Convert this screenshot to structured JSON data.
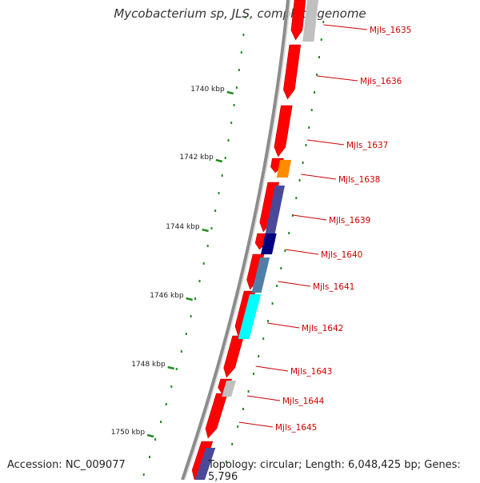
{
  "title": "Mycobacterium sp, JLS, complete genome",
  "footer": {
    "accession": "Accession: NC_009077",
    "stats": "Topology: circular; Length: 6,048,425 bp; Genes: 5,796"
  },
  "colors": {
    "backbone": "#8c8c8c",
    "tick": "#228b22",
    "gene_red": "#ff0000",
    "label": "#cc0000",
    "gray": "#c0c0c0",
    "orange": "#ff8c00",
    "navy": "#000080",
    "slate": "#4a4a9a",
    "steel": "#4f7fa8",
    "cyan": "#00ffff"
  },
  "ticks": [
    {
      "label": "1740 kbp"
    },
    {
      "label": "1742 kbp"
    },
    {
      "label": "1744 kbp"
    },
    {
      "label": "1746 kbp"
    },
    {
      "label": "1748 kbp"
    },
    {
      "label": "1750 kbp"
    }
  ],
  "genes": [
    {
      "label": "Mjls_1635"
    },
    {
      "label": "Mjls_1636"
    },
    {
      "label": "Mjls_1637"
    },
    {
      "label": "Mjls_1638"
    },
    {
      "label": "Mjls_1639"
    },
    {
      "label": "Mjls_1640"
    },
    {
      "label": "Mjls_1641"
    },
    {
      "label": "Mjls_1642"
    },
    {
      "label": "Mjls_1643"
    },
    {
      "label": "Mjls_1644"
    },
    {
      "label": "Mjls_1645"
    }
  ]
}
